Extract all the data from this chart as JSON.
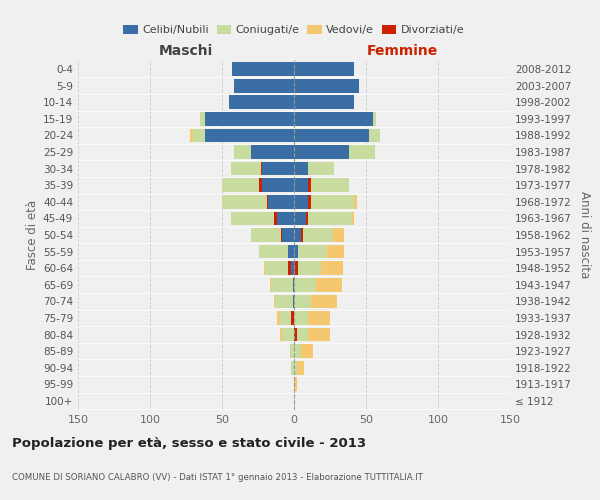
{
  "age_groups": [
    "100+",
    "95-99",
    "90-94",
    "85-89",
    "80-84",
    "75-79",
    "70-74",
    "65-69",
    "60-64",
    "55-59",
    "50-54",
    "45-49",
    "40-44",
    "35-39",
    "30-34",
    "25-29",
    "20-24",
    "15-19",
    "10-14",
    "5-9",
    "0-4"
  ],
  "birth_years": [
    "≤ 1912",
    "1913-1917",
    "1918-1922",
    "1923-1927",
    "1928-1932",
    "1933-1937",
    "1938-1942",
    "1943-1947",
    "1948-1952",
    "1953-1957",
    "1958-1962",
    "1963-1967",
    "1968-1972",
    "1973-1977",
    "1978-1982",
    "1983-1987",
    "1988-1992",
    "1993-1997",
    "1998-2002",
    "2003-2007",
    "2008-2012"
  ],
  "male_celibi": [
    0,
    0,
    0,
    0,
    0,
    0,
    1,
    1,
    2,
    4,
    8,
    12,
    18,
    22,
    22,
    30,
    62,
    62,
    45,
    42,
    43
  ],
  "male_coniugati": [
    0,
    0,
    2,
    3,
    8,
    10,
    12,
    15,
    18,
    20,
    22,
    32,
    32,
    28,
    22,
    12,
    8,
    3,
    0,
    0,
    0
  ],
  "male_vedovi": [
    0,
    0,
    0,
    0,
    2,
    2,
    1,
    1,
    1,
    0,
    0,
    0,
    0,
    0,
    0,
    0,
    2,
    0,
    0,
    0,
    0
  ],
  "male_divorziati": [
    0,
    0,
    0,
    0,
    0,
    2,
    0,
    0,
    2,
    0,
    1,
    2,
    1,
    2,
    1,
    0,
    0,
    0,
    0,
    0,
    0
  ],
  "fem_nubili": [
    0,
    0,
    0,
    0,
    0,
    0,
    0,
    0,
    1,
    3,
    5,
    8,
    10,
    10,
    10,
    38,
    52,
    55,
    42,
    45,
    42
  ],
  "fem_coniugate": [
    0,
    0,
    2,
    5,
    10,
    10,
    12,
    15,
    18,
    20,
    22,
    32,
    32,
    28,
    18,
    18,
    8,
    2,
    0,
    0,
    0
  ],
  "fem_vedove": [
    0,
    2,
    5,
    8,
    15,
    15,
    18,
    18,
    15,
    12,
    8,
    2,
    2,
    0,
    0,
    0,
    0,
    0,
    0,
    0,
    0
  ],
  "fem_divorziate": [
    0,
    0,
    0,
    0,
    2,
    0,
    0,
    0,
    2,
    0,
    1,
    2,
    2,
    2,
    0,
    0,
    0,
    0,
    0,
    0,
    0
  ],
  "color_celibi": "#3A6EA5",
  "color_coniugati": "#C8DCA0",
  "color_vedovi": "#F5C870",
  "color_divorziati": "#CC2200",
  "xlim": 150,
  "bg_color": "#f0f0f0",
  "grid_color": "#cccccc",
  "title": "Popolazione per età, sesso e stato civile - 2013",
  "subtitle": "COMUNE DI SORIANO CALABRO (VV) - Dati ISTAT 1° gennaio 2013 - Elaborazione TUTTITALIA.IT",
  "label_maschi": "Maschi",
  "label_femmine": "Femmine",
  "ylabel_left": "Fasce di età",
  "ylabel_right": "Anni di nascita",
  "legend_labels": [
    "Celibi/Nubili",
    "Coniugati/e",
    "Vedovi/e",
    "Divorziati/e"
  ],
  "xticks": [
    -150,
    -100,
    -50,
    0,
    50,
    100,
    150
  ]
}
